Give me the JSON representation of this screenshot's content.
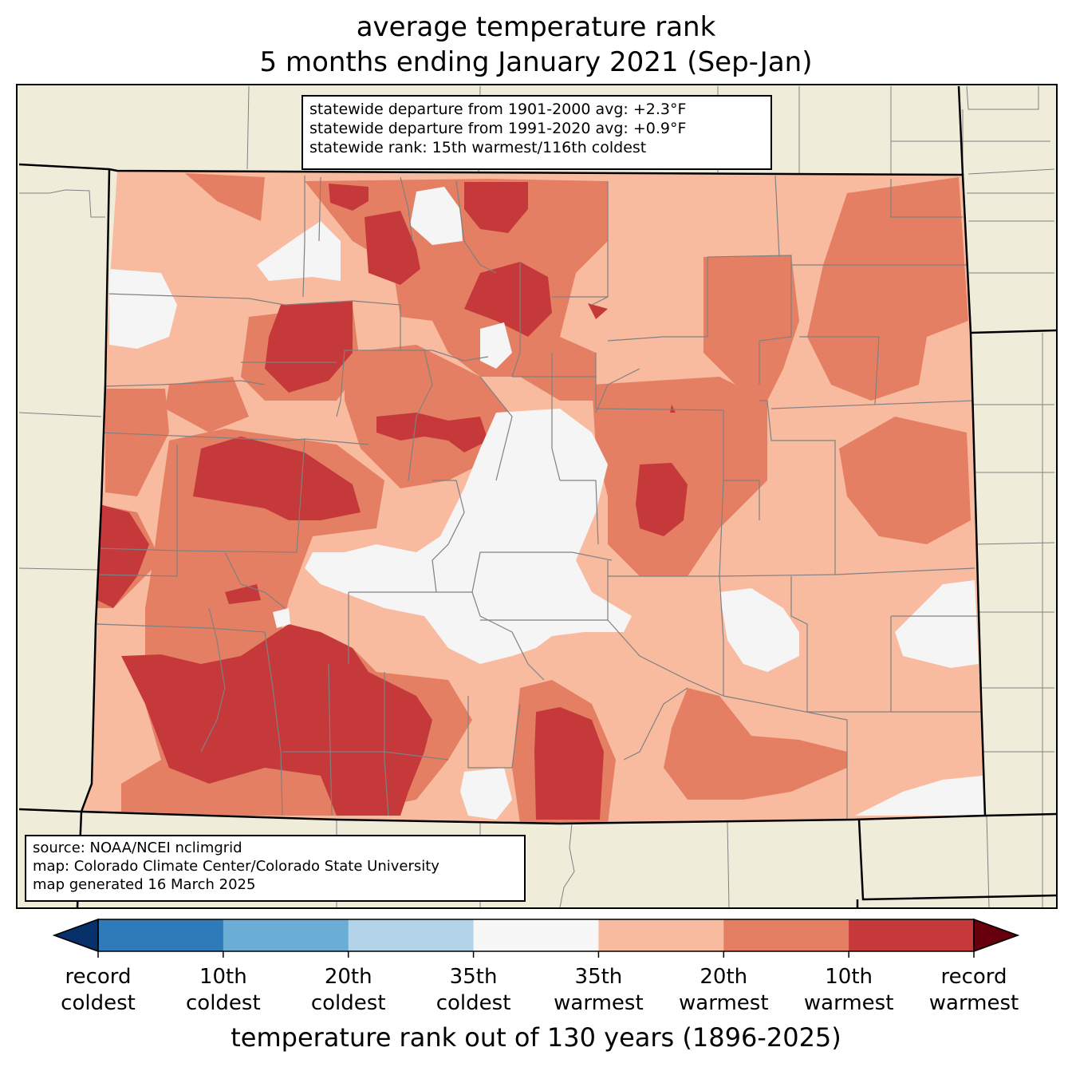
{
  "title": {
    "line1": "average temperature rank",
    "line2": "5 months ending January 2021 (Sep-Jan)"
  },
  "stats_box": {
    "line1": "statewide departure from 1901-2000 avg: +2.3°F",
    "line2": "statewide departure from 1991-2020 avg: +0.9°F",
    "line3": "statewide rank: 15th warmest/116th coldest"
  },
  "source_box": {
    "line1": "source: NOAA/NCEI nclimgrid",
    "line2": "map: Colorado Climate Center/Colorado State University",
    "line3": "map generated 16 March 2025"
  },
  "colorbar": {
    "title": "temperature rank out of 130 years (1896-2025)",
    "colors": [
      "#08306b",
      "#2f7ab9",
      "#6aadd5",
      "#b3d4e8",
      "#f7f7f7",
      "#f8bba0",
      "#e57f63",
      "#c5393b",
      "#67000d"
    ],
    "ticks": [
      {
        "line1": "record",
        "line2": "coldest"
      },
      {
        "line1": "10th",
        "line2": "coldest"
      },
      {
        "line1": "20th",
        "line2": "coldest"
      },
      {
        "line1": "35th",
        "line2": "coldest"
      },
      {
        "line1": "35th",
        "line2": "warmest"
      },
      {
        "line1": "20th",
        "line2": "warmest"
      },
      {
        "line1": "10th",
        "line2": "warmest"
      },
      {
        "line1": "record",
        "line2": "warmest"
      }
    ]
  },
  "map_colors": {
    "land": "#efedda",
    "white": "#f5f5f5",
    "light_warm": "#f8bba0",
    "mid_warm": "#e57f63",
    "dark_warm": "#c5393b",
    "county_line": "#808080",
    "state_line": "#000000"
  }
}
